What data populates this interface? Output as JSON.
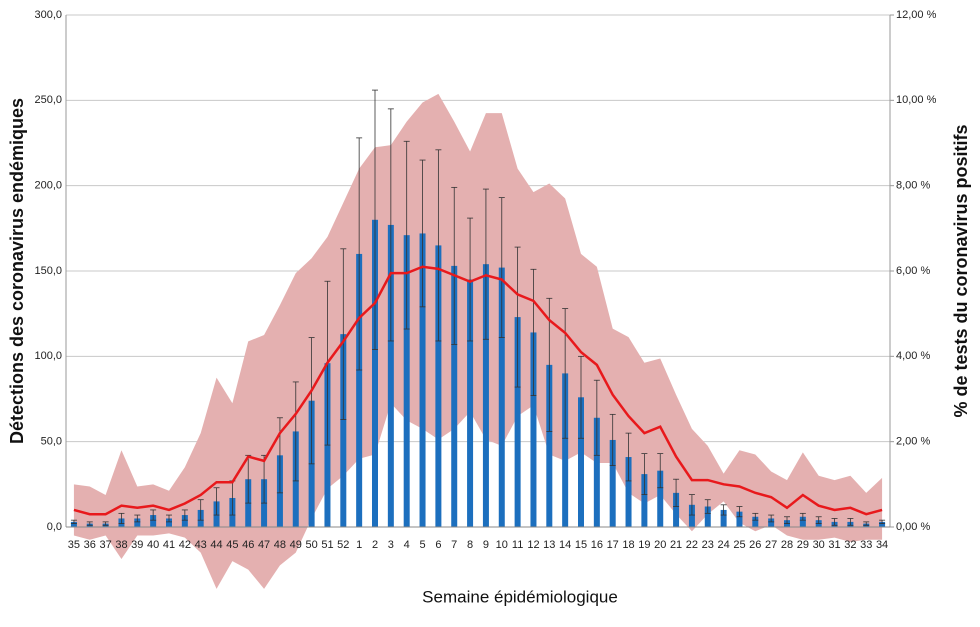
{
  "chart_data": {
    "type": "combo",
    "y_label": "Détections des coronavirus endémiques",
    "y2_label": "% de tests du coronavirus positifs",
    "x_label": "Semaine épidémiologique",
    "categories": [
      "35",
      "36",
      "37",
      "38",
      "39",
      "40",
      "41",
      "42",
      "43",
      "44",
      "45",
      "46",
      "47",
      "48",
      "49",
      "50",
      "51",
      "52",
      "1",
      "2",
      "3",
      "4",
      "5",
      "6",
      "7",
      "8",
      "9",
      "10",
      "11",
      "12",
      "13",
      "14",
      "15",
      "16",
      "17",
      "18",
      "19",
      "20",
      "21",
      "22",
      "23",
      "24",
      "25",
      "26",
      "27",
      "28",
      "29",
      "30",
      "31",
      "32",
      "33",
      "34"
    ],
    "ylim": [
      0,
      300
    ],
    "yticks": [
      {
        "value": 0,
        "label": "0,0"
      },
      {
        "value": 50,
        "label": "50,0"
      },
      {
        "value": 100,
        "label": "100,0"
      },
      {
        "value": 150,
        "label": "150,0"
      },
      {
        "value": 200,
        "label": "200,0"
      },
      {
        "value": 250,
        "label": "250,0"
      },
      {
        "value": 300,
        "label": "300,0"
      }
    ],
    "y2lim": [
      0,
      12
    ],
    "y2ticks": [
      {
        "value": 0,
        "label": "0,00 %"
      },
      {
        "value": 2,
        "label": "2,00 %"
      },
      {
        "value": 4,
        "label": "4,00 %"
      },
      {
        "value": 6,
        "label": "6,00 %"
      },
      {
        "value": 8,
        "label": "8,00 %"
      },
      {
        "value": 10,
        "label": "10,00 %"
      },
      {
        "value": 12,
        "label": "12,00 %"
      }
    ],
    "grid": true,
    "series": [
      {
        "type": "band",
        "axis": "y2",
        "color": "#e4b0b0",
        "upper": [
          1.0,
          0.95,
          0.75,
          1.8,
          0.95,
          1.0,
          0.85,
          1.4,
          2.2,
          3.5,
          2.9,
          4.35,
          4.5,
          5.2,
          5.95,
          6.3,
          6.8,
          7.6,
          8.4,
          8.9,
          8.95,
          9.5,
          9.95,
          10.15,
          9.5,
          8.8,
          9.7,
          9.7,
          8.4,
          7.85,
          8.05,
          7.7,
          6.4,
          6.1,
          4.65,
          4.45,
          3.85,
          3.95,
          3.1,
          2.3,
          1.9,
          1.25,
          1.8,
          1.7,
          1.3,
          1.1,
          1.75,
          1.2,
          1.1,
          1.2,
          0.8,
          1.15
        ],
        "lower": [
          -0.2,
          -0.3,
          -0.2,
          -0.75,
          -0.2,
          -0.2,
          -0.15,
          -0.25,
          -0.6,
          -1.45,
          -0.8,
          -1.0,
          -1.45,
          -0.9,
          -0.6,
          0.2,
          0.9,
          1.2,
          1.6,
          1.7,
          2.9,
          2.5,
          2.3,
          2.05,
          2.3,
          2.7,
          2.05,
          1.9,
          2.6,
          2.85,
          1.7,
          1.55,
          1.75,
          1.5,
          1.5,
          0.8,
          0.55,
          0.75,
          0.3,
          -0.1,
          0.3,
          0.6,
          0.1,
          -0.1,
          0.05,
          -0.2,
          -0.3,
          -0.3,
          -0.25,
          -0.35,
          -0.3,
          -0.3
        ]
      },
      {
        "type": "bar",
        "axis": "y",
        "color": "#1c6fbe",
        "values": [
          3,
          2,
          2,
          5,
          5,
          7,
          5,
          7,
          10,
          15,
          17,
          28,
          28,
          42,
          56,
          74,
          96,
          113,
          160,
          180,
          177,
          171,
          172,
          165,
          153,
          145,
          154,
          152,
          123,
          114,
          95,
          90,
          76,
          64,
          51,
          41,
          31,
          33,
          20,
          13,
          12,
          10,
          9,
          6,
          5,
          4,
          6,
          4,
          3,
          3,
          2,
          3
        ],
        "errors": [
          1,
          1,
          1,
          3,
          2,
          3,
          2,
          3,
          6,
          8,
          10,
          14,
          14,
          22,
          29,
          37,
          48,
          50,
          68,
          76,
          68,
          55,
          43,
          56,
          46,
          36,
          44,
          41,
          41,
          37,
          39,
          38,
          24,
          22,
          15,
          14,
          12,
          10,
          8,
          6,
          4,
          3,
          3,
          2,
          2,
          2,
          2,
          2,
          2,
          2,
          1,
          1
        ]
      },
      {
        "type": "line",
        "axis": "y2",
        "color": "#e8191c",
        "values": [
          0.4,
          0.3,
          0.3,
          0.5,
          0.45,
          0.5,
          0.4,
          0.55,
          0.75,
          1.05,
          1.05,
          1.65,
          1.55,
          2.2,
          2.65,
          3.2,
          3.85,
          4.35,
          4.9,
          5.25,
          5.95,
          5.95,
          6.1,
          6.05,
          5.9,
          5.75,
          5.9,
          5.8,
          5.45,
          5.3,
          4.85,
          4.55,
          4.1,
          3.8,
          3.1,
          2.6,
          2.2,
          2.35,
          1.65,
          1.1,
          1.1,
          1.0,
          0.95,
          0.8,
          0.7,
          0.45,
          0.75,
          0.5,
          0.4,
          0.45,
          0.3,
          0.4
        ]
      }
    ]
  }
}
